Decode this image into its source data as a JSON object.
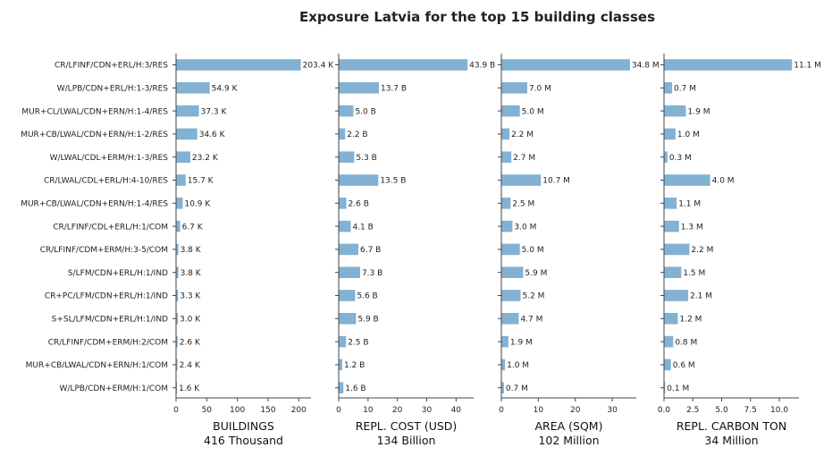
{
  "chart_data": {
    "type": "bar",
    "orientation": "horizontal",
    "title": "Exposure Latvia for the top 15 building classes",
    "bar_color": "#82b1d3",
    "categories": [
      "CR/LFINF/CDN+ERL/H:3/RES",
      "W/LPB/CDN+ERL/H:1-3/RES",
      "MUR+CL/LWAL/CDN+ERN/H:1-4/RES",
      "MUR+CB/LWAL/CDN+ERN/H:1-2/RES",
      "W/LWAL/CDL+ERM/H:1-3/RES",
      "CR/LWAL/CDL+ERL/H:4-10/RES",
      "MUR+CB/LWAL/CDN+ERN/H:1-4/RES",
      "CR/LFINF/CDL+ERL/H:1/COM",
      "CR/LFINF/CDM+ERM/H:3-5/COM",
      "S/LFM/CDN+ERL/H:1/IND",
      "CR+PC/LFM/CDN+ERL/H:1/IND",
      "S+SL/LFM/CDN+ERL/H:1/IND",
      "CR/LFINF/CDM+ERM/H:2/COM",
      "MUR+CB/LWAL/CDN+ERN/H:1/COM",
      "W/LPB/CDN+ERM/H:1/COM"
    ],
    "panels": [
      {
        "xlabel": "BUILDINGS",
        "total": "416 Thousand",
        "xlim": [
          0,
          220
        ],
        "ticks": [
          0,
          50,
          100,
          150,
          200
        ],
        "tick_labels": [
          "0",
          "50",
          "100",
          "150",
          "200"
        ],
        "values": [
          203.4,
          54.9,
          37.3,
          34.6,
          23.2,
          15.7,
          10.9,
          6.7,
          3.8,
          3.8,
          3.3,
          3.0,
          2.6,
          2.4,
          1.6
        ],
        "labels": [
          "203.4 K",
          "54.9 K",
          "37.3 K",
          "34.6 K",
          "23.2 K",
          "15.7 K",
          "10.9 K",
          "6.7 K",
          "3.8 K",
          "3.8 K",
          "3.3 K",
          "3.0 K",
          "2.6 K",
          "2.4 K",
          "1.6 K"
        ]
      },
      {
        "xlabel": "REPL. COST (USD)",
        "total": "134 Billion",
        "xlim": [
          0,
          46
        ],
        "ticks": [
          0,
          10,
          20,
          30,
          40
        ],
        "tick_labels": [
          "0",
          "10",
          "20",
          "30",
          "40"
        ],
        "values": [
          43.9,
          13.7,
          5.0,
          2.2,
          5.3,
          13.5,
          2.6,
          4.1,
          6.7,
          7.3,
          5.6,
          5.9,
          2.5,
          1.2,
          1.6
        ],
        "labels": [
          "43.9 B",
          "13.7 B",
          "5.0 B",
          "2.2 B",
          "5.3 B",
          "13.5 B",
          "2.6 B",
          "4.1 B",
          "6.7 B",
          "7.3 B",
          "5.6 B",
          "5.9 B",
          "2.5 B",
          "1.2 B",
          "1.6 B"
        ]
      },
      {
        "xlabel": "AREA (SQM)",
        "total": "102 Million",
        "xlim": [
          0,
          36.5
        ],
        "ticks": [
          0,
          10,
          20,
          30
        ],
        "tick_labels": [
          "0",
          "10",
          "20",
          "30"
        ],
        "values": [
          34.8,
          7.0,
          5.0,
          2.2,
          2.7,
          10.7,
          2.5,
          3.0,
          5.0,
          5.9,
          5.2,
          4.7,
          1.9,
          1.0,
          0.7
        ],
        "labels": [
          "34.8 M",
          "7.0 M",
          "5.0 M",
          "2.2 M",
          "2.7 M",
          "10.7 M",
          "2.5 M",
          "3.0 M",
          "5.0 M",
          "5.9 M",
          "5.2 M",
          "4.7 M",
          "1.9 M",
          "1.0 M",
          "0.7 M"
        ]
      },
      {
        "xlabel": "REPL. CARBON TON",
        "total": "34 Million",
        "xlim": [
          0,
          11.7
        ],
        "ticks": [
          0,
          2.5,
          5,
          7.5,
          10
        ],
        "tick_labels": [
          "0.0",
          "2.5",
          "5.0",
          "7.5",
          "10.0"
        ],
        "values": [
          11.1,
          0.7,
          1.9,
          1.0,
          0.3,
          4.0,
          1.1,
          1.3,
          2.2,
          1.5,
          2.1,
          1.2,
          0.8,
          0.6,
          0.1
        ],
        "labels": [
          "11.1 M",
          "0.7 M",
          "1.9 M",
          "1.0 M",
          "0.3 M",
          "4.0 M",
          "1.1 M",
          "1.3 M",
          "2.2 M",
          "1.5 M",
          "2.1 M",
          "1.2 M",
          "0.8 M",
          "0.6 M",
          "0.1 M"
        ]
      }
    ]
  }
}
